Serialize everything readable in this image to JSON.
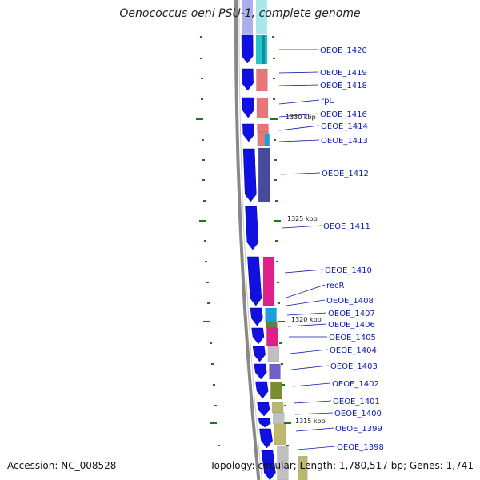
{
  "title": "Oenococcus oeni PSU-1, complete genome",
  "footer": {
    "accession": "Accession: NC_008528",
    "topology": "Topology: circular; Length: 1,780,517 bp; Genes: 1,741"
  },
  "colors": {
    "backbone": "#888888",
    "forward_gene": "#1010e0",
    "label": "#0a1aa8",
    "tick": "#1a7a1a"
  },
  "ruler": [
    {
      "label": "1330 kbp"
    },
    {
      "label": "1325 kbp"
    },
    {
      "label": "1320 kbp"
    },
    {
      "label": "1315 kbp"
    }
  ],
  "genes": [
    {
      "label": "OEOE_1420"
    },
    {
      "label": "OEOE_1419"
    },
    {
      "label": "OEOE_1418"
    },
    {
      "label": "rpU"
    },
    {
      "label": "OEOE_1416"
    },
    {
      "label": "OEOE_1414"
    },
    {
      "label": "OEOE_1413"
    },
    {
      "label": "OEOE_1412"
    },
    {
      "label": "OEOE_1411"
    },
    {
      "label": "OEOE_1410"
    },
    {
      "label": "recR"
    },
    {
      "label": "OEOE_1408"
    },
    {
      "label": "OEOE_1407"
    },
    {
      "label": "OEOE_1406"
    },
    {
      "label": "OEOE_1405"
    },
    {
      "label": "OEOE_1404"
    },
    {
      "label": "OEOE_1403"
    },
    {
      "label": "OEOE_1402"
    },
    {
      "label": "OEOE_1401"
    },
    {
      "label": "OEOE_1400"
    },
    {
      "label": "OEOE_1399"
    },
    {
      "label": "OEOE_1398"
    }
  ]
}
